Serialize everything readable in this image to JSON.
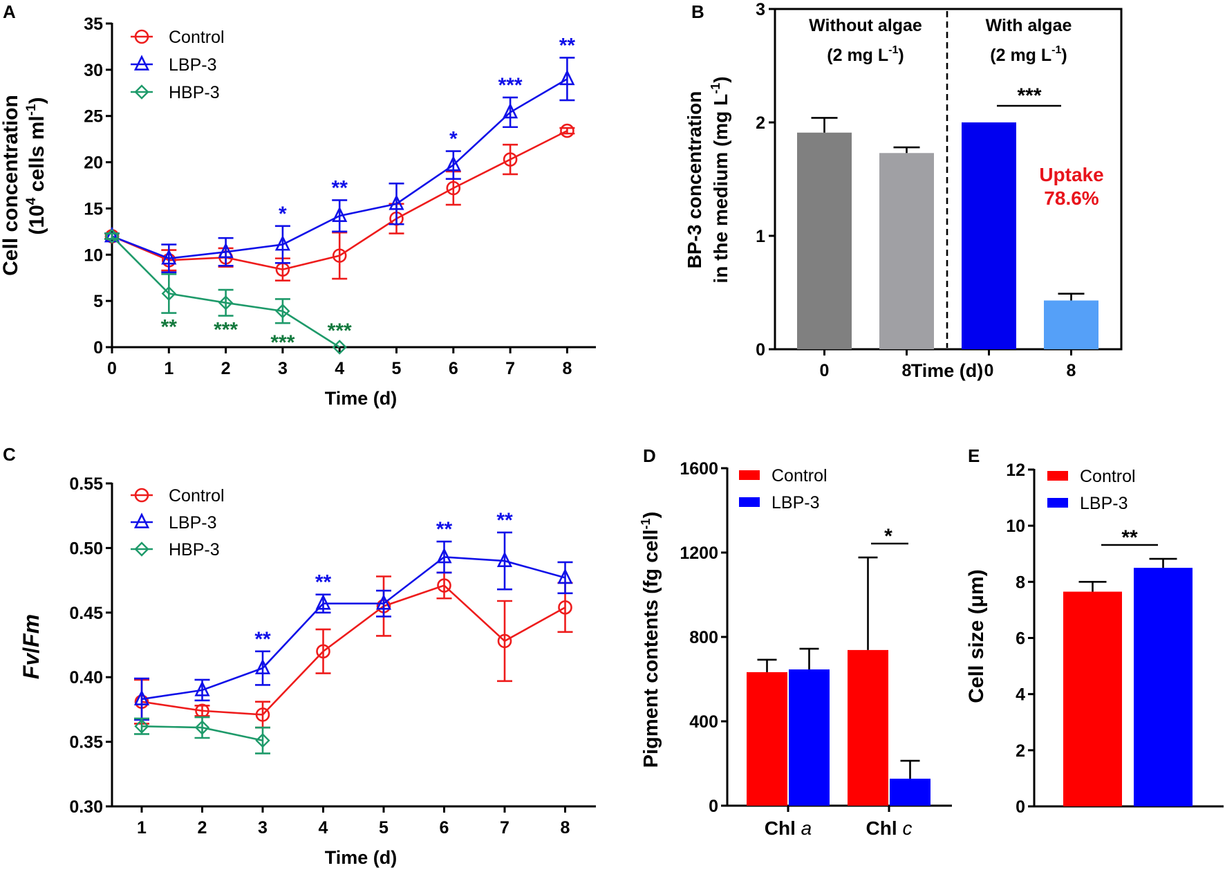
{
  "chart_data": [
    {
      "panel": "A",
      "type": "line",
      "ylabel_line1": "Cell concentration",
      "ylabel_line2_pre": "(10",
      "ylabel_line2_sup": "4",
      "ylabel_line2_mid": " cells  ml",
      "ylabel_line2_sup2": "-1",
      "ylabel_line2_post": ")",
      "xlabel": "Time (d)",
      "ylim": [
        0,
        35
      ],
      "yticks": [
        0,
        5,
        10,
        15,
        20,
        25,
        30,
        35
      ],
      "xticks": [
        0,
        1,
        2,
        3,
        4,
        5,
        6,
        7,
        8
      ],
      "legend_position": "top-left",
      "series": [
        {
          "name": "Control",
          "color": "#ee1c1c",
          "marker": "circle",
          "x": [
            0,
            1,
            2,
            3,
            4,
            5,
            6,
            7,
            8
          ],
          "y": [
            12.0,
            9.4,
            9.7,
            8.4,
            9.9,
            13.9,
            17.2,
            20.3,
            23.4
          ],
          "err": [
            0.3,
            1.1,
            1.0,
            1.2,
            2.5,
            1.6,
            1.8,
            1.6,
            0.3
          ],
          "sig": []
        },
        {
          "name": "LBP-3",
          "color": "#1010e8",
          "marker": "triangle",
          "x": [
            0,
            1,
            2,
            3,
            4,
            5,
            6,
            7,
            8
          ],
          "y": [
            12.0,
            9.6,
            10.3,
            11.1,
            14.2,
            15.5,
            19.7,
            25.4,
            29.0
          ],
          "err": [
            0.3,
            1.5,
            1.5,
            2.0,
            1.7,
            2.2,
            1.5,
            1.6,
            2.3
          ],
          "sig": [
            {
              "x": 3,
              "label": "*"
            },
            {
              "x": 4,
              "label": "**"
            },
            {
              "x": 6,
              "label": "*"
            },
            {
              "x": 7,
              "label": "***"
            },
            {
              "x": 8,
              "label": "**"
            }
          ]
        },
        {
          "name": "HBP-3",
          "color": "#1e9a6a",
          "marker": "diamond",
          "x": [
            0,
            1,
            2,
            3,
            4
          ],
          "y": [
            12.0,
            5.8,
            4.8,
            3.9,
            0.0
          ],
          "err": [
            0.3,
            2.1,
            1.4,
            1.3,
            0.0
          ],
          "sig": [
            {
              "x": 1,
              "label": "**"
            },
            {
              "x": 2,
              "label": "***"
            },
            {
              "x": 3,
              "label": "***"
            },
            {
              "x": 4,
              "label": "***"
            }
          ],
          "sig_color": "#137a3e"
        }
      ]
    },
    {
      "panel": "B",
      "type": "bar",
      "ylabel_line1": "BP-3 concentration",
      "ylabel_line2_pre": "in the medium (mg L",
      "ylabel_line2_sup": "-1",
      "ylabel_line2_post": ")",
      "xlabel": "Time (d)",
      "ylim": [
        0,
        3
      ],
      "yticks": [
        0,
        1,
        2,
        3
      ],
      "groups": [
        {
          "title": "Without algae",
          "subtitle_pre": "(2 mg L",
          "subtitle_sup": "-1",
          "subtitle_post": ")"
        },
        {
          "title": "With algae",
          "subtitle_pre": "(2 mg L",
          "subtitle_sup": "-1",
          "subtitle_post": ")"
        }
      ],
      "categories": [
        "0",
        "8",
        "0",
        "8"
      ],
      "values": [
        1.91,
        1.73,
        2.0,
        0.43
      ],
      "err": [
        0.13,
        0.05,
        0.0,
        0.06
      ],
      "colors": [
        "#808080",
        "#a0a0a4",
        "#0000f0",
        "#55a0f8"
      ],
      "significance": {
        "label": "***",
        "between": [
          2,
          3
        ]
      },
      "annotation": {
        "line1": "Uptake",
        "line2": "78.6%",
        "color": "#e8141c"
      }
    },
    {
      "panel": "C",
      "type": "line",
      "ylabel_italic1": "Fv",
      "ylabel_sep": "/",
      "ylabel_italic2": "Fm",
      "xlabel": "Time (d)",
      "ylim": [
        0.3,
        0.55
      ],
      "yticks": [
        "0.30",
        "0.35",
        "0.40",
        "0.45",
        "0.50",
        "0.55"
      ],
      "xticks": [
        1,
        2,
        3,
        4,
        5,
        6,
        7,
        8
      ],
      "legend_position": "top-left",
      "series": [
        {
          "name": "Control",
          "color": "#ee1c1c",
          "marker": "circle",
          "x": [
            1,
            2,
            3,
            4,
            5,
            6,
            7,
            8
          ],
          "y": [
            0.381,
            0.374,
            0.371,
            0.42,
            0.455,
            0.471,
            0.428,
            0.454
          ],
          "err": [
            0.017,
            0.004,
            0.01,
            0.017,
            0.023,
            0.01,
            0.031,
            0.019
          ],
          "sig": []
        },
        {
          "name": "LBP-3",
          "color": "#1010e8",
          "marker": "triangle",
          "x": [
            1,
            2,
            3,
            4,
            5,
            6,
            7,
            8
          ],
          "y": [
            0.383,
            0.39,
            0.407,
            0.457,
            0.457,
            0.493,
            0.49,
            0.477
          ],
          "err": [
            0.016,
            0.008,
            0.013,
            0.007,
            0.01,
            0.012,
            0.022,
            0.012
          ],
          "sig": [
            {
              "x": 3,
              "label": "**"
            },
            {
              "x": 4,
              "label": "**"
            },
            {
              "x": 6,
              "label": "**"
            },
            {
              "x": 7,
              "label": "**"
            }
          ]
        },
        {
          "name": "HBP-3",
          "color": "#1e9a6a",
          "marker": "diamond",
          "x": [
            1,
            2,
            3
          ],
          "y": [
            0.362,
            0.361,
            0.351
          ],
          "err": [
            0.006,
            0.008,
            0.01
          ],
          "sig": []
        }
      ]
    },
    {
      "panel": "D",
      "type": "bar",
      "ylabel_pre": "Pigment contents (fg cell",
      "ylabel_sup": "-1",
      "ylabel_post": ")",
      "ylim": [
        0,
        1600
      ],
      "yticks": [
        0,
        400,
        800,
        1200,
        1600
      ],
      "categories": [
        {
          "bold": "Chl ",
          "italic": "a"
        },
        {
          "bold": "Chl ",
          "italic": "c"
        }
      ],
      "legend_position": "top-left",
      "series": [
        {
          "name": "Control",
          "color": "#ff0000",
          "values": [
            633,
            738
          ],
          "err": [
            59,
            439
          ]
        },
        {
          "name": "LBP-3",
          "color": "#0000ff",
          "values": [
            646,
            128
          ],
          "err": [
            98,
            85
          ]
        }
      ],
      "significance": [
        {
          "category": 1,
          "label": "*"
        }
      ]
    },
    {
      "panel": "E",
      "type": "bar",
      "ylabel": "Cell size (μm)",
      "ylim": [
        0,
        12
      ],
      "yticks": [
        0,
        2,
        4,
        6,
        8,
        10,
        12
      ],
      "legend_position": "top-left",
      "series": [
        {
          "name": "Control",
          "color": "#ff0000",
          "values": [
            7.65
          ],
          "err": [
            0.35
          ]
        },
        {
          "name": "LBP-3",
          "color": "#0000ff",
          "values": [
            8.5
          ],
          "err": [
            0.32
          ]
        }
      ],
      "significance": {
        "label": "**"
      }
    }
  ],
  "panel_labels": [
    "A",
    "B",
    "C",
    "D",
    "E"
  ]
}
